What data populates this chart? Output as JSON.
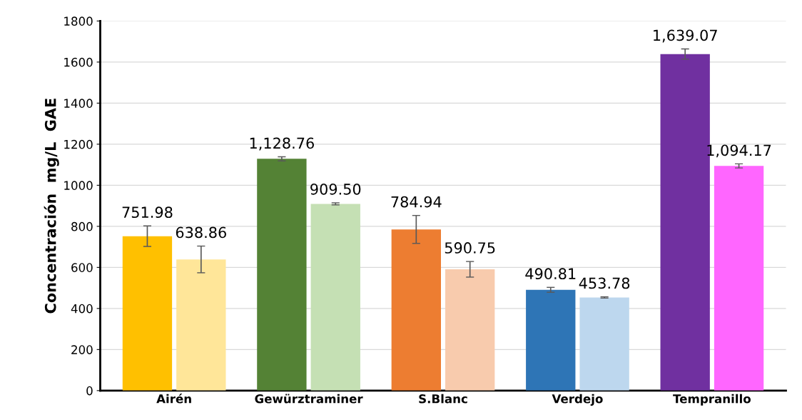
{
  "chart_data": {
    "type": "bar",
    "ylabel": "Concentración  mg/L  GAE",
    "categories": [
      "Airén",
      "Gewürztraminer",
      "S.Blanc",
      "Verdejo",
      "Tempranillo"
    ],
    "series": [
      {
        "colors": [
          "#ffc000",
          "#548235",
          "#ed7d31",
          "#2e75b6",
          "#7030a0"
        ],
        "values": [
          751.98,
          1128.76,
          784.94,
          490.81,
          1639.07
        ],
        "errors": [
          50,
          10,
          68,
          12,
          25
        ],
        "value_labels": [
          "751.98",
          "1,128.76",
          "784.94",
          "490.81",
          "1,639.07"
        ]
      },
      {
        "colors": [
          "#ffe699",
          "#c5e0b4",
          "#f8cbad",
          "#bdd7ee",
          "#ff66ff"
        ],
        "values": [
          638.86,
          909.5,
          590.75,
          453.78,
          1094.17
        ],
        "errors": [
          65,
          5,
          38,
          3,
          10
        ],
        "value_labels": [
          "638.86",
          "909.50",
          "590.75",
          "453.78",
          "1,094.17"
        ]
      }
    ],
    "ylim": [
      0,
      1800
    ],
    "yticks": [
      0,
      200,
      400,
      600,
      800,
      1000,
      1200,
      1400,
      1600,
      1800
    ],
    "grid": "y"
  }
}
